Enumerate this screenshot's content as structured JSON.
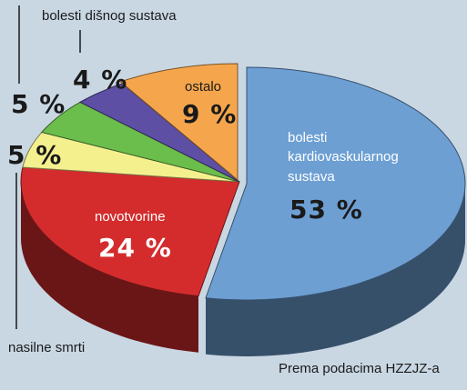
{
  "chart_data": {
    "type": "pie",
    "title": "",
    "source": "Prema podacima HZZJZ-a",
    "slices": [
      {
        "label": "bolesti kardiovaskularnog sustava",
        "label_lines": [
          "bolesti",
          "kardiovaskularnog",
          "sustava"
        ],
        "value": 53,
        "value_label": "53 %",
        "color": "#6d9fd3"
      },
      {
        "label": "novotvorine",
        "label_lines": [
          "novotvorine"
        ],
        "value": 24,
        "value_label": "24 %",
        "color": "#d42c2d"
      },
      {
        "label": "nasilne smrti",
        "label_lines": [
          "nasilne smrti"
        ],
        "value": 5,
        "value_label": "5 %",
        "color": "#f5f08e"
      },
      {
        "label": "",
        "label_lines": [],
        "value": 5,
        "value_label": "5 %",
        "color": "#6cbe4c"
      },
      {
        "label": "bolesti dišnog sustava",
        "label_lines": [
          "bolesti dišnog sustava"
        ],
        "value": 4,
        "value_label": "4 %",
        "color": "#5d4fa3"
      },
      {
        "label": "ostalo",
        "label_lines": [
          "ostalo"
        ],
        "value": 9,
        "value_label": "9 %",
        "color": "#f5a64d"
      }
    ]
  }
}
